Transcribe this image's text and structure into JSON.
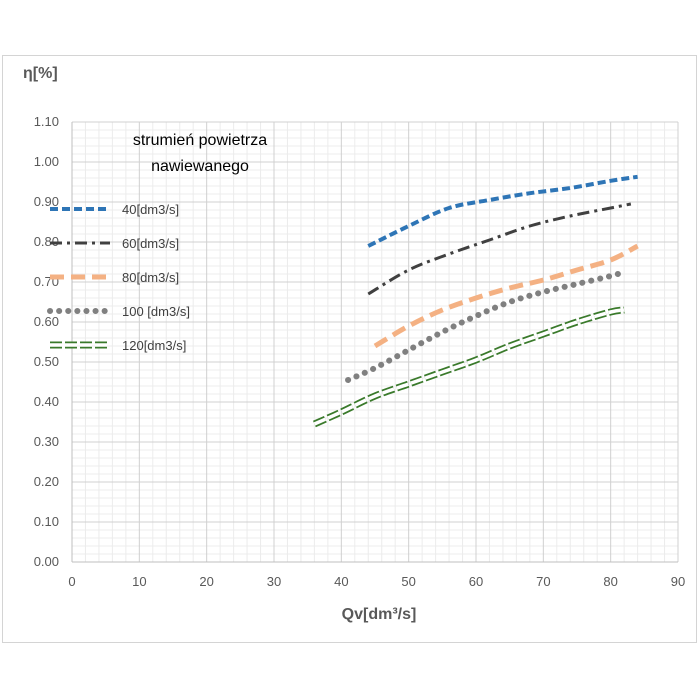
{
  "chart_data": {
    "type": "line",
    "ylabel": "η[%]",
    "xlabel": "Qv[dm³/s]",
    "xlim": [
      0,
      90
    ],
    "ylim": [
      0,
      1.1
    ],
    "x_ticks": [
      "0",
      "10",
      "20",
      "30",
      "40",
      "50",
      "60",
      "70",
      "80",
      "90"
    ],
    "y_ticks": [
      "0.00",
      "0.10",
      "0.20",
      "0.30",
      "0.40",
      "0.50",
      "0.60",
      "0.70",
      "0.80",
      "0.90",
      "1.00",
      "1.10"
    ],
    "grid": true,
    "legend_title_lines": [
      "strumień powietrza",
      "nawiewanego"
    ],
    "legend_position": "top-left",
    "series": [
      {
        "name": "40[dm3/s]",
        "color": "#2E75B6",
        "style": "dashed",
        "x": [
          44,
          50,
          56,
          62,
          68,
          74,
          80,
          84
        ],
        "y": [
          0.79,
          0.84,
          0.885,
          0.905,
          0.922,
          0.935,
          0.953,
          0.963
        ]
      },
      {
        "name": "60[dm3/s]",
        "color": "#404040",
        "style": "dash-dot",
        "x": [
          44,
          50,
          56,
          62,
          68,
          74,
          80,
          83
        ],
        "y": [
          0.67,
          0.73,
          0.77,
          0.805,
          0.84,
          0.865,
          0.885,
          0.895
        ]
      },
      {
        "name": "80[dm3/s]",
        "color": "#F4B183",
        "style": "long-dash",
        "x": [
          45,
          50,
          55,
          60,
          65,
          70,
          75,
          80,
          84
        ],
        "y": [
          0.54,
          0.59,
          0.63,
          0.66,
          0.685,
          0.705,
          0.73,
          0.755,
          0.79
        ]
      },
      {
        "name": "100 [dm3/s]",
        "color": "#808080",
        "style": "dotted",
        "x": [
          41,
          45,
          50,
          55,
          60,
          65,
          70,
          75,
          80,
          82
        ],
        "y": [
          0.455,
          0.485,
          0.53,
          0.575,
          0.615,
          0.65,
          0.675,
          0.695,
          0.715,
          0.725
        ]
      },
      {
        "name": "120[dm3/s]",
        "color": "#3A7A2B",
        "style": "outlined-dash",
        "x": [
          36,
          40,
          45,
          50,
          55,
          60,
          65,
          70,
          75,
          80,
          82
        ],
        "y": [
          0.345,
          0.375,
          0.415,
          0.445,
          0.475,
          0.505,
          0.54,
          0.57,
          0.6,
          0.625,
          0.63
        ]
      }
    ]
  }
}
